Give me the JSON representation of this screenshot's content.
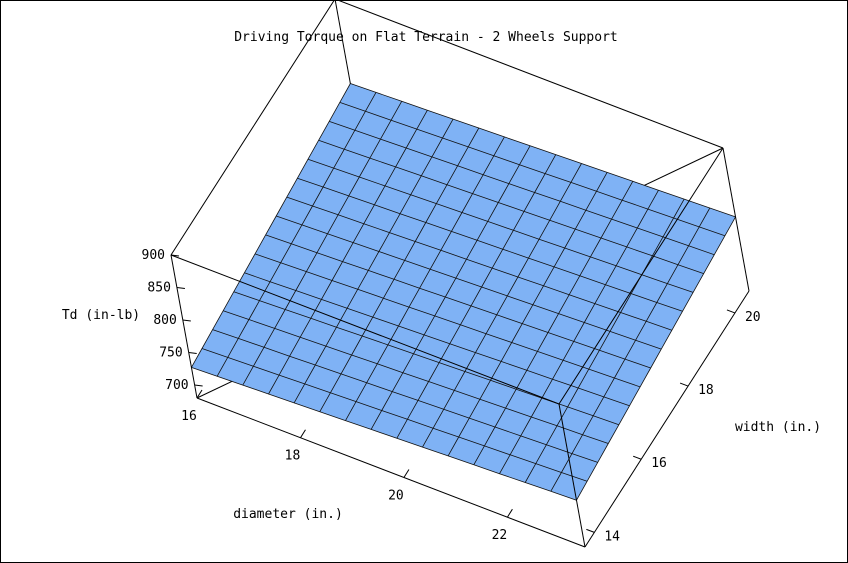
{
  "chart_data": {
    "type": "surface3d",
    "title": "Driving Torque on Flat Terrain - 2 Wheels Support",
    "xlabel": "diameter (in.)",
    "ylabel": "width (in.)",
    "zlabel": "Td (in-lb)",
    "x_range": [
      16,
      23.5
    ],
    "y_range": [
      13.6,
      20.6
    ],
    "z_range": [
      680,
      900
    ],
    "x_ticks": [
      16,
      18,
      20,
      22
    ],
    "y_ticks": [
      14,
      16,
      18,
      20
    ],
    "z_ticks": [
      700,
      750,
      800,
      850,
      900
    ],
    "grid_divisions": [
      15,
      15
    ],
    "surface_color": "#7fb2f5",
    "corner_values": {
      "d16_w14": 727,
      "d23.5_w14": 752,
      "d16_w20.6": 770,
      "d23.5_w20.6": 794
    }
  }
}
